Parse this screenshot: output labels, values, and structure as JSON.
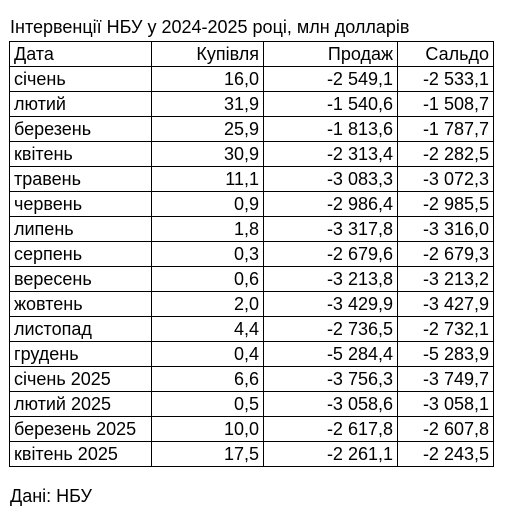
{
  "title": "Інтервенції НБУ у 2024-2025 році, млн долларів",
  "columns": [
    "Дата",
    "Купівля",
    "Продаж",
    "Сальдо"
  ],
  "rows": [
    {
      "month": "січень",
      "buy": "16,0",
      "sell": "-2 549,1",
      "balance": "-2 533,1"
    },
    {
      "month": "лютий",
      "buy": "31,9",
      "sell": "-1 540,6",
      "balance": "-1 508,7"
    },
    {
      "month": "березень",
      "buy": "25,9",
      "sell": "-1 813,6",
      "balance": "-1 787,7"
    },
    {
      "month": "квітень",
      "buy": "30,9",
      "sell": "-2 313,4",
      "balance": "-2 282,5"
    },
    {
      "month": "травень",
      "buy": "11,1",
      "sell": "-3 083,3",
      "balance": "-3 072,3"
    },
    {
      "month": "червень",
      "buy": "0,9",
      "sell": "-2 986,4",
      "balance": "-2 985,5"
    },
    {
      "month": "липень",
      "buy": "1,8",
      "sell": "-3 317,8",
      "balance": "-3 316,0"
    },
    {
      "month": "серпень",
      "buy": "0,3",
      "sell": "-2 679,6",
      "balance": "-2 679,3"
    },
    {
      "month": "вересень",
      "buy": "0,6",
      "sell": "-3 213,8",
      "balance": "-3 213,2"
    },
    {
      "month": "жовтень",
      "buy": "2,0",
      "sell": "-3 429,9",
      "balance": "-3 427,9"
    },
    {
      "month": "листопад",
      "buy": "4,4",
      "sell": "-2 736,5",
      "balance": "-2 732,1"
    },
    {
      "month": "грудень",
      "buy": "0,4",
      "sell": "-5 284,4",
      "balance": "-5 283,9"
    },
    {
      "month": "січень 2025",
      "buy": "6,6",
      "sell": "-3 756,3",
      "balance": "-3 749,7"
    },
    {
      "month": "лютий 2025",
      "buy": "0,5",
      "sell": "-3 058,6",
      "balance": "-3 058,1"
    },
    {
      "month": "березень 2025",
      "buy": "10,0",
      "sell": "-2 617,8",
      "balance": "-2 607,8"
    },
    {
      "month": "квітень 2025",
      "buy": "17,5",
      "sell": "-2 261,1",
      "balance": "-2 243,5"
    }
  ],
  "source": "Дані: НБУ"
}
